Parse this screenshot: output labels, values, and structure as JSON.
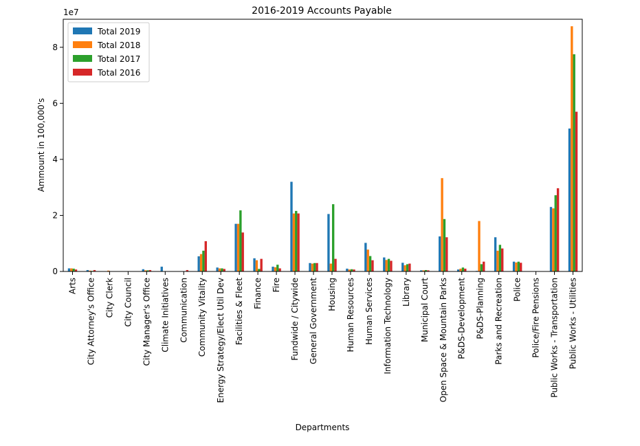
{
  "chart_data": {
    "type": "bar",
    "title": "2016-2019 Accounts Payable",
    "xlabel": "Departments",
    "ylabel": "Ammount in 100,000's",
    "offset_text": "1e7",
    "ylim": [
      0,
      90000000
    ],
    "yticks": [
      0,
      20000000,
      40000000,
      60000000,
      80000000
    ],
    "ytick_labels": [
      "0",
      "2",
      "4",
      "6",
      "8"
    ],
    "legend_position": "top-left",
    "categories": [
      "Arts",
      "City Attorney's Office",
      "City Clerk",
      "City Council",
      "City Manager's Office",
      "Climate Initiatives",
      "Communication",
      "Community Vitality",
      "Energy Strategy/Elect Util Dev",
      "Facilities & Fleet",
      "Finance",
      "Fire",
      "Fundwide / Citywide",
      "General Government",
      "Housing",
      "Human Resources",
      "Human Services",
      "Information Technology",
      "Library",
      "Municipal Court",
      "Open Space & Mountain Parks",
      "P&DS-Development",
      "P&DS-Planning",
      "Parks and Recreation",
      "Police",
      "Police/Fire Pensions",
      "Public Works - Transportation",
      "Public Works - Utilities"
    ],
    "series": [
      {
        "name": "Total 2019",
        "color": "#1f77b4",
        "values": [
          1100000,
          500000,
          0,
          0,
          800000,
          1700000,
          0,
          5400000,
          1400000,
          17000000,
          4700000,
          1700000,
          32000000,
          3000000,
          20500000,
          1000000,
          10200000,
          5000000,
          3100000,
          400000,
          12500000,
          700000,
          200000,
          12200000,
          3500000,
          0,
          23000000,
          51000000
        ]
      },
      {
        "name": "Total 2018",
        "color": "#ff7f0e",
        "values": [
          1100000,
          300000,
          300000,
          100000,
          400000,
          0,
          0,
          6200000,
          1100000,
          17000000,
          4000000,
          1500000,
          20700000,
          2800000,
          2800000,
          700000,
          7800000,
          4100000,
          2200000,
          400000,
          33300000,
          1000000,
          18000000,
          7400000,
          3200000,
          0,
          22500000,
          87500000
        ]
      },
      {
        "name": "Total 2017",
        "color": "#2ca02c",
        "values": [
          1000000,
          200000,
          0,
          0,
          400000,
          0,
          0,
          7400000,
          1100000,
          21800000,
          900000,
          2400000,
          21600000,
          3000000,
          24000000,
          800000,
          5500000,
          4500000,
          2600000,
          500000,
          18700000,
          1400000,
          2600000,
          9500000,
          3500000,
          0,
          27200000,
          77500000
        ]
      },
      {
        "name": "Total 2016",
        "color": "#d62728",
        "values": [
          700000,
          500000,
          0,
          0,
          500000,
          0,
          500000,
          10800000,
          900000,
          13900000,
          4500000,
          1100000,
          20700000,
          3000000,
          4500000,
          700000,
          4000000,
          3800000,
          2800000,
          400000,
          12200000,
          1000000,
          3500000,
          8200000,
          3100000,
          0,
          29700000,
          57000000
        ]
      }
    ]
  }
}
